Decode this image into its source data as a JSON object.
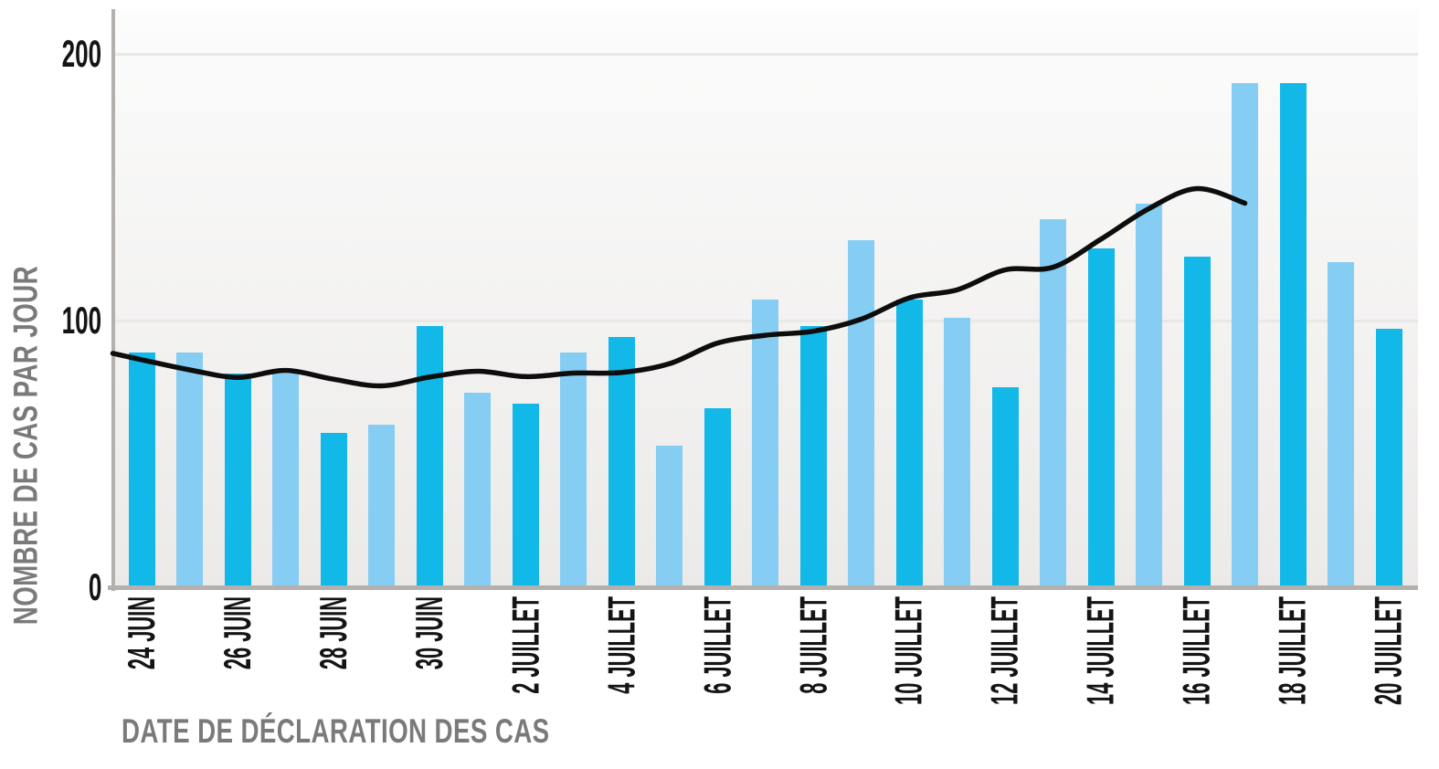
{
  "chart_data": {
    "type": "bar+line",
    "title": "",
    "ylabel": "NOMBRE DE CAS PAR JOUR",
    "xlabel": "DATE DE DÉCLARATION DES CAS",
    "ylim": [
      0,
      217
    ],
    "yticks": [
      0,
      100,
      200
    ],
    "grid": "horizontal",
    "legend": "none",
    "n_bars": 27,
    "x_label_every": 2,
    "x_tick_labels": [
      "24 JUIN",
      "26 JUIN",
      "28 JUIN",
      "30 JUIN",
      "2 JUILLET",
      "4 JUILLET",
      "6 JUILLET",
      "8 JUILLET",
      "10 JUILLET",
      "12 JUILLET",
      "14 JUILLET",
      "16 JUILLET",
      "18 JUILLET",
      "20 JUILLET"
    ],
    "bars": {
      "dark_color": "#11b8e8",
      "light_color": "#85cdf2",
      "values": [
        88,
        88,
        80,
        80,
        58,
        61,
        98,
        73,
        69,
        88,
        94,
        53,
        67,
        108,
        98,
        130,
        108,
        101,
        75,
        138,
        127,
        144,
        124,
        189,
        189,
        122,
        97
      ]
    },
    "trend": {
      "color": "#0d0d0d",
      "points": [
        [
          -0.6,
          87.7
        ],
        [
          0,
          85.3
        ],
        [
          1,
          81.5
        ],
        [
          2,
          78.7
        ],
        [
          3,
          81.3
        ],
        [
          4,
          78
        ],
        [
          5,
          75.5
        ],
        [
          6,
          78.8
        ],
        [
          7,
          81
        ],
        [
          8,
          79
        ],
        [
          9,
          80.3
        ],
        [
          10,
          80.5
        ],
        [
          11,
          83.8
        ],
        [
          12,
          91.5
        ],
        [
          13,
          94.5
        ],
        [
          14,
          96
        ],
        [
          15,
          100.5
        ],
        [
          16,
          108.5
        ],
        [
          17,
          111.5
        ],
        [
          18,
          119
        ],
        [
          19,
          120
        ],
        [
          20,
          130.5
        ],
        [
          21,
          142
        ],
        [
          22,
          149.5
        ],
        [
          23,
          144
        ]
      ]
    },
    "axis_color": "#b4b0ad",
    "grid_color": "#e8e8e6",
    "tick_text_color": "#141414",
    "title_text_color": "#7a7a7a",
    "plot_bg_top": "#fcfcfc",
    "plot_bg_bottom": "#ebeae9"
  }
}
